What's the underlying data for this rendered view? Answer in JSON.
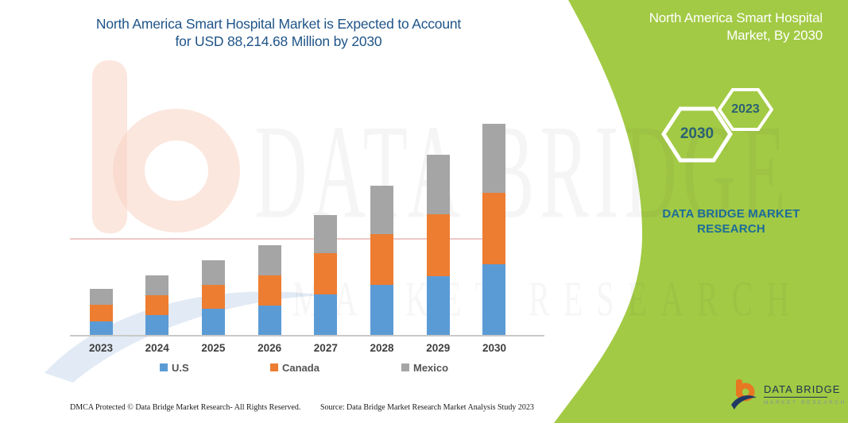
{
  "header": {
    "title_line1": "North America Smart Hospital Market is Expected to Account",
    "title_line2": "for USD 88,214.68 Million by 2030"
  },
  "side_panel": {
    "title_line1": "North America Smart Hospital",
    "title_line2": "Market, By 2030",
    "hexagon_year_front": "2030",
    "hexagon_year_back": "2023",
    "brand_line1": "DATA BRIDGE MARKET",
    "brand_line2": "RESEARCH"
  },
  "chart_data": {
    "type": "bar",
    "stacked": true,
    "units": "USD Million",
    "categories": [
      "2023",
      "2024",
      "2025",
      "2026",
      "2027",
      "2028",
      "2029",
      "2030"
    ],
    "series": [
      {
        "name": "U.S",
        "color": "#5B9BD5",
        "values": [
          5640,
          8290,
          10940,
          12270,
          16910,
          20890,
          24540,
          29510
        ]
      },
      {
        "name": "Canada",
        "color": "#ED7D31",
        "values": [
          6960,
          8290,
          9950,
          12600,
          17240,
          21220,
          25870,
          29840
        ]
      },
      {
        "name": "Mexico",
        "color": "#A5A5A5",
        "values": [
          6630,
          8290,
          10280,
          12600,
          15920,
          20230,
          24870,
          28864.68
        ]
      }
    ],
    "totals": [
      19230,
      24870,
      31170,
      37470,
      50070,
      62340,
      75280,
      88214.68
    ],
    "note": "2030 total of USD 88,214.68 Million is stated in the title; per-segment and earlier-year values are estimated from bar heights",
    "xlabel": "",
    "ylabel": "",
    "y_axis_shown": false,
    "grid": false,
    "legend_position": "bottom"
  },
  "watermark": {
    "line1": "DATA BRIDGE",
    "line2": "MARKET RESEARCH"
  },
  "logo": {
    "name": "DATA BRIDGE",
    "subtext": "MARKET RESEARCH"
  },
  "footer": {
    "left": "DMCA Protected © Data Bridge Market Research-  All Rights Reserved.",
    "right": "Source: Data Bridge Market Research  Market Analysis Study 2023"
  },
  "colors": {
    "panel_green": "#A2CA44",
    "title_blue": "#1F5488",
    "brand_teal": "#1C6C99",
    "hexagon_text": "#2B6173"
  }
}
